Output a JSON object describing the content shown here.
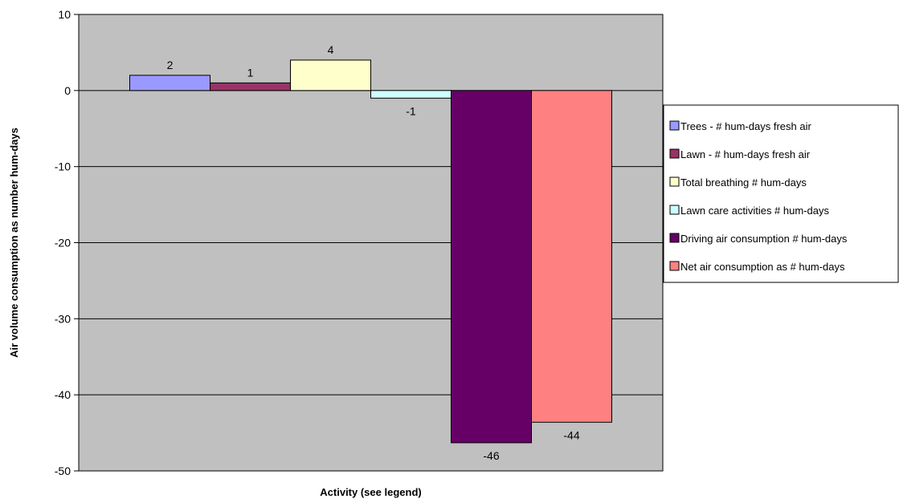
{
  "chart_data": {
    "type": "bar",
    "title": "",
    "xlabel": "Activity (see legend)",
    "ylabel": "Air volume consumption as number hum-days",
    "ylim": [
      -50,
      10
    ],
    "yticks": [
      10,
      0,
      -10,
      -20,
      -30,
      -40,
      -50
    ],
    "grid": true,
    "legend_position": "right",
    "plot_background": "#c0c0c0",
    "series": [
      {
        "name": "Trees - # hum-days fresh air",
        "value": 2,
        "label": "2",
        "color": "#9999ff"
      },
      {
        "name": "Lawn - # hum-days fresh air",
        "value": 1,
        "label": "1",
        "color": "#993366"
      },
      {
        "name": "Total breathing # hum-days",
        "value": 4,
        "label": "4",
        "color": "#ffffcc"
      },
      {
        "name": "Lawn care activities # hum-days",
        "value": -1,
        "label": "-1",
        "color": "#ccffff"
      },
      {
        "name": "Driving air consumption # hum-days",
        "value": -46.3,
        "label": "-46",
        "color": "#660066"
      },
      {
        "name": "Net air consumption as # hum-days",
        "value": -43.6,
        "label": "-44",
        "color": "#ff8080"
      }
    ]
  }
}
